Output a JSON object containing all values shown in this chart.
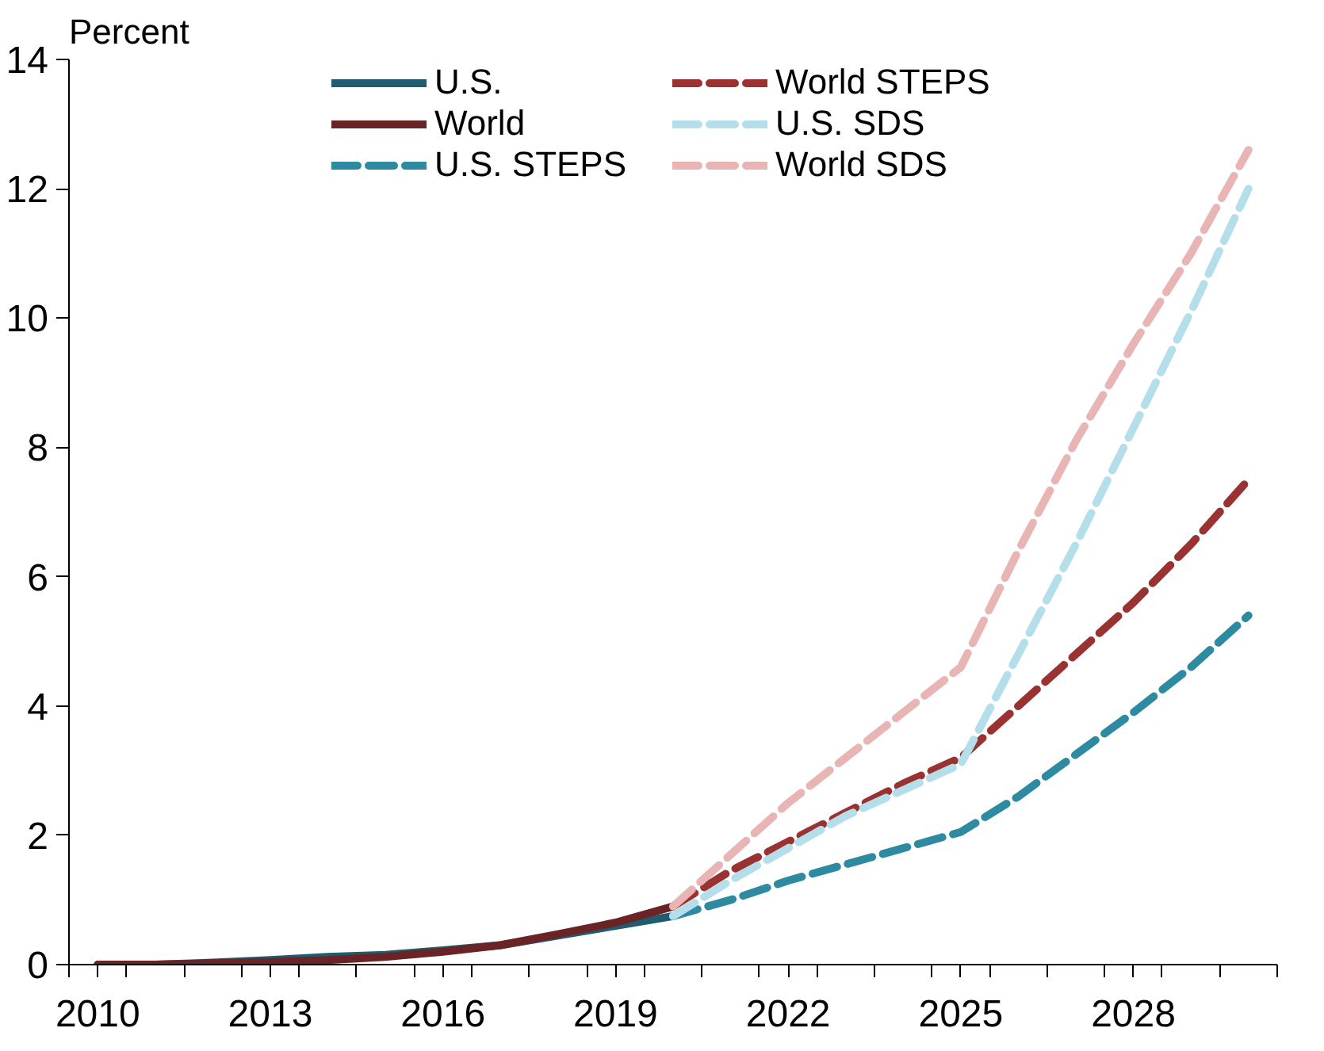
{
  "chart_data": {
    "type": "line",
    "ylabel": "Percent",
    "legend": "top",
    "grid": false,
    "xlim": [
      2009.5,
      2030.5
    ],
    "xticks": [
      {
        "value": 2009.5,
        "label": null
      },
      {
        "value": 2010.5,
        "label": null
      },
      {
        "value": 2011.5,
        "label": null
      },
      {
        "value": 2012.5,
        "label": null
      },
      {
        "value": 2013.5,
        "label": null
      },
      {
        "value": 2014.5,
        "label": null
      },
      {
        "value": 2015.5,
        "label": null
      },
      {
        "value": 2016.5,
        "label": null
      },
      {
        "value": 2017.5,
        "label": null
      },
      {
        "value": 2018.5,
        "label": null
      },
      {
        "value": 2019.5,
        "label": null
      },
      {
        "value": 2020.5,
        "label": null
      },
      {
        "value": 2021.5,
        "label": null
      },
      {
        "value": 2022.5,
        "label": null
      },
      {
        "value": 2023.5,
        "label": null
      },
      {
        "value": 2024.5,
        "label": null
      },
      {
        "value": 2025.5,
        "label": null
      },
      {
        "value": 2026.5,
        "label": null
      },
      {
        "value": 2027.5,
        "label": null
      },
      {
        "value": 2028.5,
        "label": null
      },
      {
        "value": 2029.5,
        "label": null
      },
      {
        "value": 2030.5,
        "label": null
      },
      {
        "value": 2010,
        "label": "2010"
      },
      {
        "value": 2013,
        "label": "2013"
      },
      {
        "value": 2016,
        "label": "2016"
      },
      {
        "value": 2019,
        "label": "2019"
      },
      {
        "value": 2022,
        "label": "2022"
      },
      {
        "value": 2025,
        "label": "2025"
      },
      {
        "value": 2028,
        "label": "2028"
      }
    ],
    "ylim": [
      0,
      14
    ],
    "yticks": [
      0,
      2,
      4,
      6,
      8,
      10,
      12,
      14
    ],
    "series": [
      {
        "name": "U.S.",
        "color": "#1f5c70",
        "line_style": "solid",
        "x": [
          2010,
          2011,
          2012,
          2013,
          2014,
          2015,
          2016,
          2017,
          2018,
          2019,
          2020
        ],
        "values": [
          0,
          0,
          0.03,
          0.07,
          0.12,
          0.15,
          0.22,
          0.3,
          0.45,
          0.6,
          0.75
        ]
      },
      {
        "name": "World",
        "color": "#6b2426",
        "line_style": "solid",
        "x": [
          2010,
          2011,
          2012,
          2013,
          2014,
          2015,
          2016,
          2017,
          2018,
          2019,
          2020
        ],
        "values": [
          0,
          0,
          0.02,
          0.04,
          0.07,
          0.12,
          0.2,
          0.3,
          0.47,
          0.65,
          0.9
        ]
      },
      {
        "name": "U.S. STEPS",
        "color": "#2e8aa0",
        "line_style": "dashed",
        "x": [
          2020,
          2021,
          2022,
          2023,
          2024,
          2025,
          2026,
          2027,
          2028,
          2029,
          2030
        ],
        "values": [
          0.75,
          1.0,
          1.3,
          1.55,
          1.8,
          2.05,
          2.6,
          3.25,
          3.9,
          4.6,
          5.4
        ]
      },
      {
        "name": "World STEPS",
        "color": "#9a3232",
        "line_style": "dashed",
        "x": [
          2020,
          2021,
          2022,
          2023,
          2024,
          2025,
          2026,
          2027,
          2028,
          2029,
          2030
        ],
        "values": [
          0.9,
          1.45,
          1.9,
          2.35,
          2.8,
          3.2,
          4.0,
          4.8,
          5.6,
          6.5,
          7.5
        ]
      },
      {
        "name": "U.S. SDS",
        "color": "#b4dfea",
        "line_style": "dashed",
        "x": [
          2020,
          2021,
          2022,
          2023,
          2024,
          2025,
          2026,
          2027,
          2028,
          2029,
          2030
        ],
        "values": [
          0.75,
          1.3,
          1.8,
          2.3,
          2.7,
          3.1,
          4.8,
          6.5,
          8.3,
          10.1,
          12.0
        ]
      },
      {
        "name": "World SDS",
        "color": "#e8b4b4",
        "line_style": "dashed",
        "x": [
          2020,
          2021,
          2022,
          2023,
          2024,
          2025,
          2026,
          2027,
          2028,
          2029,
          2030
        ],
        "values": [
          0.9,
          1.7,
          2.5,
          3.2,
          3.9,
          4.6,
          6.4,
          8.1,
          9.6,
          11.0,
          12.6
        ]
      }
    ]
  }
}
